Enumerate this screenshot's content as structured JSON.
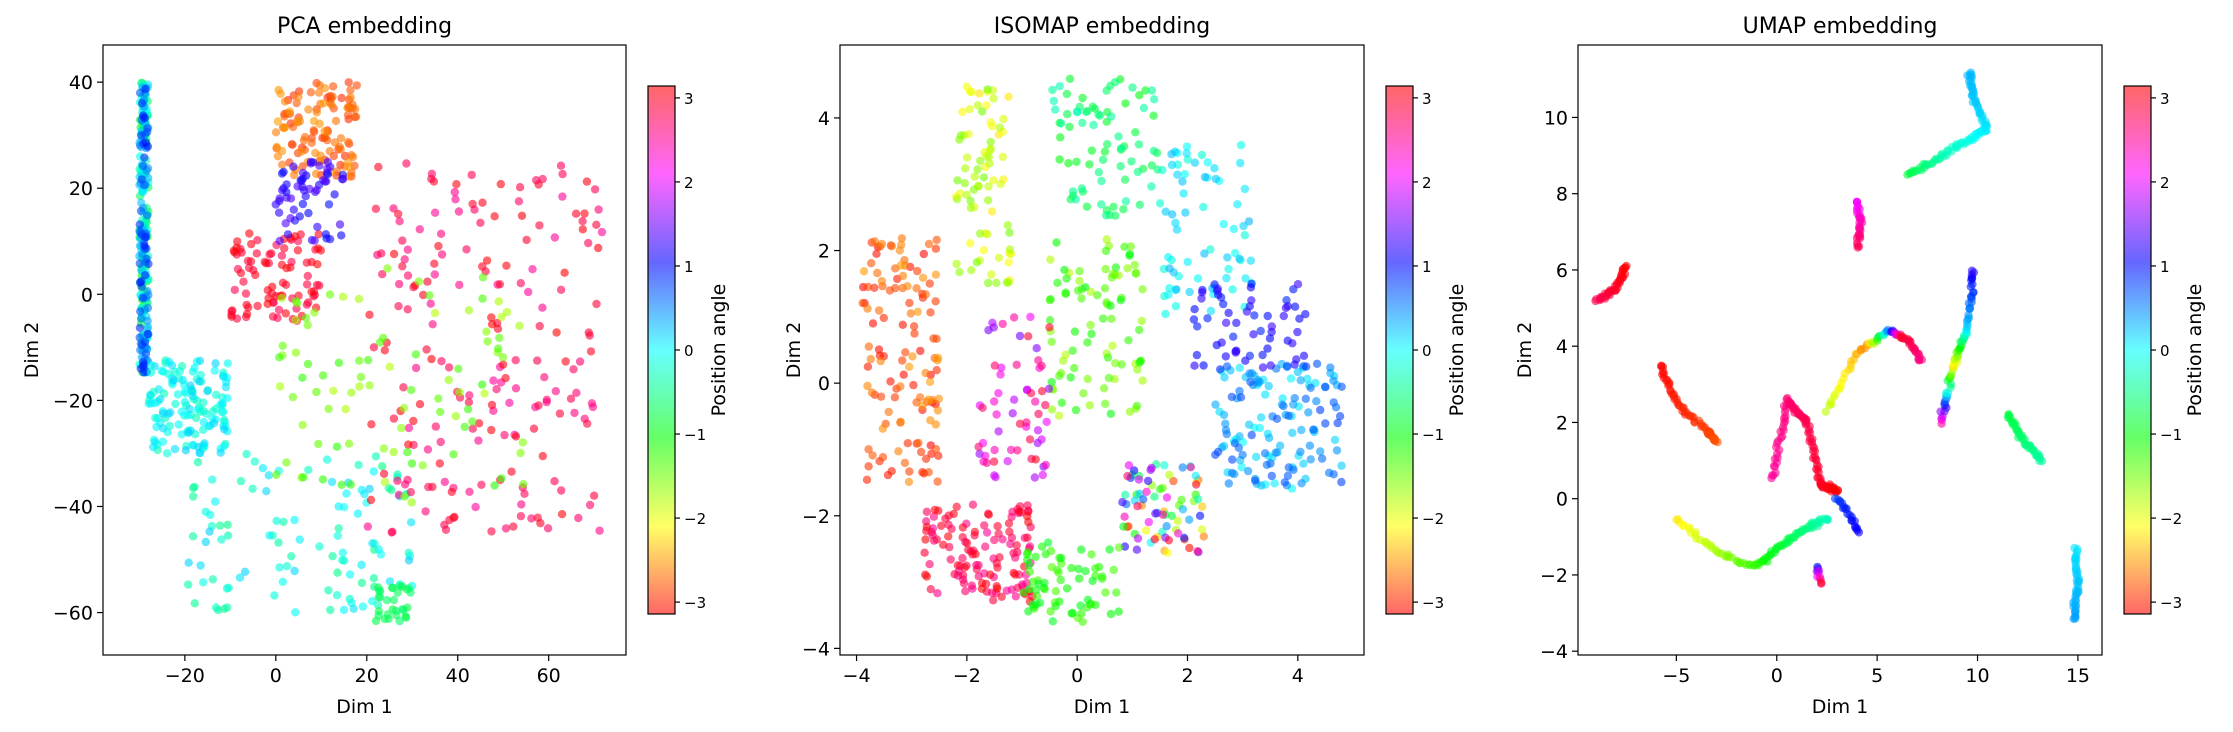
{
  "chart_data": [
    {
      "type": "scatter",
      "title": "PCA embedding",
      "xlabel": "Dim 1",
      "ylabel": "Dim 2",
      "xlim": [
        -38,
        77
      ],
      "ylim": [
        -68,
        47
      ],
      "xticks": [
        -20,
        0,
        20,
        40,
        60
      ],
      "yticks": [
        -60,
        -40,
        -20,
        0,
        20,
        40
      ],
      "colorbar": {
        "label": "Position angle",
        "range": [
          -3.14159,
          3.14159
        ],
        "ticks": [
          -3,
          -2,
          -1,
          0,
          1,
          2,
          3
        ],
        "colormap": "hsv"
      },
      "clusters": [
        {
          "x": [
            -28,
            0,
            12,
            18,
            10,
            -5,
            -22,
            -30
          ],
          "y": [
            -10,
            10,
            30,
            40,
            15,
            -5,
            -10,
            -15
          ],
          "color_value": [
            -1,
            -0.5,
            0,
            0.5,
            1
          ],
          "count": 260
        },
        {
          "x": [
            0,
            18
          ],
          "y": [
            22,
            40
          ],
          "color_value": [
            -3,
            -2.5
          ],
          "count": 120
        },
        {
          "x": [
            -10,
            10
          ],
          "y": [
            -5,
            12
          ],
          "color_value": [
            2.8,
            3.14
          ],
          "count": 90
        },
        {
          "x": [
            -28,
            -10
          ],
          "y": [
            -30,
            -12
          ],
          "color_value": [
            -0.3,
            0.2
          ],
          "count": 140
        },
        {
          "x": [
            -20,
            30
          ],
          "y": [
            -60,
            -30
          ],
          "color_value": [
            -0.5,
            0.2
          ],
          "count": 110
        },
        {
          "x": [
            20,
            72
          ],
          "y": [
            -45,
            25
          ],
          "color_value": [
            2.5,
            3.14
          ],
          "count": 200
        },
        {
          "x": [
            0,
            55
          ],
          "y": [
            -40,
            5
          ],
          "color_value": [
            -1.8,
            -1.2
          ],
          "count": 90
        },
        {
          "x": [
            0,
            15
          ],
          "y": [
            10,
            25
          ],
          "color_value": [
            1.0,
            1.4
          ],
          "count": 60
        },
        {
          "x": [
            22,
            30
          ],
          "y": [
            -62,
            -55
          ],
          "color_value": [
            -0.8,
            -0.6
          ],
          "count": 30
        }
      ]
    },
    {
      "type": "scatter",
      "title": "ISOMAP embedding",
      "xlabel": "Dim 1",
      "ylabel": "Dim 2",
      "xlim": [
        -4.3,
        5.2
      ],
      "ylim": [
        -4.1,
        5.1
      ],
      "xticks": [
        -4,
        -2,
        0,
        2,
        4
      ],
      "yticks": [
        -4,
        -2,
        0,
        2,
        4
      ],
      "colorbar": {
        "label": "Position angle",
        "range": [
          -3.14159,
          3.14159
        ],
        "ticks": [
          -3,
          -2,
          -1,
          0,
          1,
          2,
          3
        ],
        "colormap": "hsv"
      },
      "clusters": [
        {
          "x": [
            -3.9,
            -2.5
          ],
          "y": [
            -1.5,
            2.2
          ],
          "color_value": [
            -3.14,
            -2.5
          ],
          "count": 130
        },
        {
          "x": [
            -2.8,
            -0.8
          ],
          "y": [
            -3.3,
            -1.8
          ],
          "color_value": [
            2.5,
            3.14
          ],
          "count": 130
        },
        {
          "x": [
            -2.2,
            -1.2
          ],
          "y": [
            1.5,
            4.5
          ],
          "color_value": [
            -2.2,
            -1.5
          ],
          "count": 80
        },
        {
          "x": [
            -0.5,
            1.5
          ],
          "y": [
            2.5,
            4.6
          ],
          "color_value": [
            -1.0,
            -0.3
          ],
          "count": 80
        },
        {
          "x": [
            1.5,
            3.2
          ],
          "y": [
            1.0,
            3.6
          ],
          "color_value": [
            -0.2,
            0.3
          ],
          "count": 70
        },
        {
          "x": [
            2.5,
            4.8
          ],
          "y": [
            -1.6,
            0.3
          ],
          "color_value": [
            0.0,
            0.8
          ],
          "count": 140
        },
        {
          "x": [
            2.0,
            4.2
          ],
          "y": [
            0.2,
            1.5
          ],
          "color_value": [
            0.9,
            1.3
          ],
          "count": 60
        },
        {
          "x": [
            0.8,
            2.3
          ],
          "y": [
            -2.6,
            -1.2
          ],
          "color_value": [
            -3.1,
            3.0
          ],
          "count": 80
        },
        {
          "x": [
            -1.0,
            0.8
          ],
          "y": [
            -3.6,
            -2.4
          ],
          "color_value": [
            -1.4,
            -0.9
          ],
          "count": 70
        },
        {
          "x": [
            -0.5,
            1.2
          ],
          "y": [
            -0.5,
            2.2
          ],
          "color_value": [
            -1.8,
            -1.0
          ],
          "count": 90
        },
        {
          "x": [
            -1.8,
            -0.5
          ],
          "y": [
            -1.5,
            1.0
          ],
          "color_value": [
            1.5,
            3.0
          ],
          "count": 60
        }
      ]
    },
    {
      "type": "scatter",
      "title": "UMAP embedding",
      "xlabel": "Dim 1",
      "ylabel": "Dim 2",
      "xlim": [
        -9.9,
        16.2
      ],
      "ylim": [
        -4.1,
        11.9
      ],
      "xticks": [
        -5,
        0,
        5,
        10,
        15
      ],
      "yticks": [
        -4,
        -2,
        0,
        2,
        4,
        6,
        8,
        10
      ],
      "colorbar": {
        "label": "Position angle",
        "range": [
          -3.14159,
          3.14159
        ],
        "ticks": [
          -3,
          -2,
          -1,
          0,
          1,
          2,
          3
        ],
        "colormap": "hsv"
      },
      "strands": [
        {
          "x": [
            -9.0,
            -8.0,
            -7.5
          ],
          "y": [
            5.2,
            5.5,
            6.1
          ],
          "color_value": [
            2.8,
            3.14
          ],
          "count": 40
        },
        {
          "x": [
            4.0,
            4.2,
            4.0
          ],
          "y": [
            7.8,
            7.2,
            6.6
          ],
          "color_value": [
            2.0,
            2.8
          ],
          "count": 30
        },
        {
          "x": [
            6.5,
            8.0,
            9.5,
            10.5,
            9.8,
            9.6
          ],
          "y": [
            8.5,
            8.9,
            9.4,
            9.7,
            10.5,
            11.2
          ],
          "color_value": [
            -0.8,
            -0.3,
            0.0,
            0.2,
            0.3
          ],
          "count": 90
        },
        {
          "x": [
            -5.8,
            -5.0,
            -3.5,
            -3.0
          ],
          "y": [
            3.5,
            2.5,
            1.8,
            1.5
          ],
          "color_value": [
            -3.14,
            -2.8
          ],
          "count": 60
        },
        {
          "x": [
            -5,
            -3,
            -1,
            0.2,
            1.5,
            2.5
          ],
          "y": [
            -0.5,
            -1.4,
            -1.8,
            -1.2,
            -0.8,
            -0.5
          ],
          "color_value": [
            -2.2,
            -1.6,
            -1.0,
            -0.6,
            -0.3
          ],
          "count": 90
        },
        {
          "x": [
            -0.2,
            0.5,
            1.5,
            2.2,
            3.0
          ],
          "y": [
            0.5,
            2.6,
            2.0,
            0.4,
            0.2
          ],
          "color_value": [
            2.5,
            3.14
          ],
          "count": 110
        },
        {
          "x": [
            2.5,
            4.0,
            5.5,
            6.5,
            7.2
          ],
          "y": [
            2.3,
            3.8,
            4.4,
            4.2,
            3.6
          ],
          "color_value": [
            -1.8,
            -2.6,
            3.0,
            2.6
          ],
          "count": 70
        },
        {
          "x": [
            8.2,
            8.8,
            9.5,
            9.8
          ],
          "y": [
            2.0,
            3.5,
            4.5,
            6.0
          ],
          "color_value": [
            2.5,
            -2.2,
            0.2,
            1.2
          ],
          "count": 70
        },
        {
          "x": [
            11.5,
            12.3,
            13.2
          ],
          "y": [
            2.2,
            1.5,
            1.0
          ],
          "color_value": [
            -0.8,
            -0.4
          ],
          "count": 40
        },
        {
          "x": [
            14.9,
            15.0,
            14.8
          ],
          "y": [
            -1.3,
            -2.3,
            -3.2
          ],
          "color_value": [
            0.1,
            0.4
          ],
          "count": 40
        },
        {
          "x": [
            3.0,
            3.6,
            4.1
          ],
          "y": [
            0.0,
            -0.4,
            -0.9
          ],
          "color_value": [
            0.8,
            1.1
          ],
          "count": 20
        },
        {
          "x": [
            2.0,
            2.2
          ],
          "y": [
            -1.8,
            -2.2
          ],
          "color_value": [
            1.0,
            3.0
          ],
          "count": 10
        }
      ]
    }
  ]
}
